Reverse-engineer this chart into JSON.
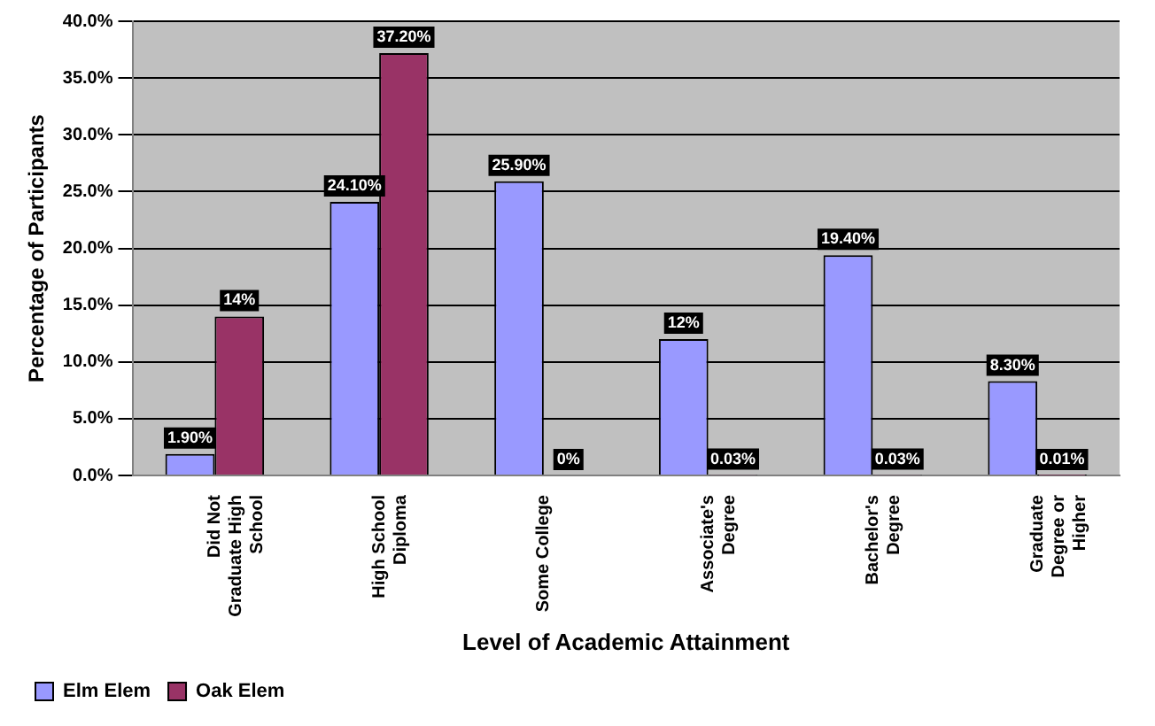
{
  "chart_data": {
    "type": "bar",
    "xlabel": "Level of Academic Attainment",
    "ylabel": "Percentage of Participants",
    "categories": [
      "Did Not Graduate High School",
      "High School Diploma",
      "Some College",
      "Associate's Degree",
      "Bachelor's Degree",
      "Graduate Degree or Higher"
    ],
    "series": [
      {
        "name": "Elm Elem",
        "color": "#9999ff",
        "values": [
          1.9,
          24.1,
          25.9,
          12,
          19.4,
          8.3
        ],
        "value_labels": [
          "1.90%",
          "24.10%",
          "25.90%",
          "12%",
          "19.40%",
          "8.30%"
        ]
      },
      {
        "name": "Oak Elem",
        "color": "#993366",
        "values": [
          14,
          37.2,
          0,
          0.03,
          0.03,
          0.01
        ],
        "value_labels": [
          "14%",
          "37.20%",
          "0%",
          "0.03%",
          "0.03%",
          "0.01%"
        ]
      }
    ],
    "ylim": [
      0,
      40
    ],
    "yticks": [
      {
        "value": 0,
        "label": "0.0%"
      },
      {
        "value": 5,
        "label": "5.0%"
      },
      {
        "value": 10,
        "label": "10.0%"
      },
      {
        "value": 15,
        "label": "15.0%"
      },
      {
        "value": 20,
        "label": "20.0%"
      },
      {
        "value": 25,
        "label": "25.0%"
      },
      {
        "value": 30,
        "label": "30.0%"
      },
      {
        "value": 35,
        "label": "35.0%"
      },
      {
        "value": 40,
        "label": "40.0%"
      }
    ],
    "grid": "y",
    "legend": "bottom left"
  }
}
